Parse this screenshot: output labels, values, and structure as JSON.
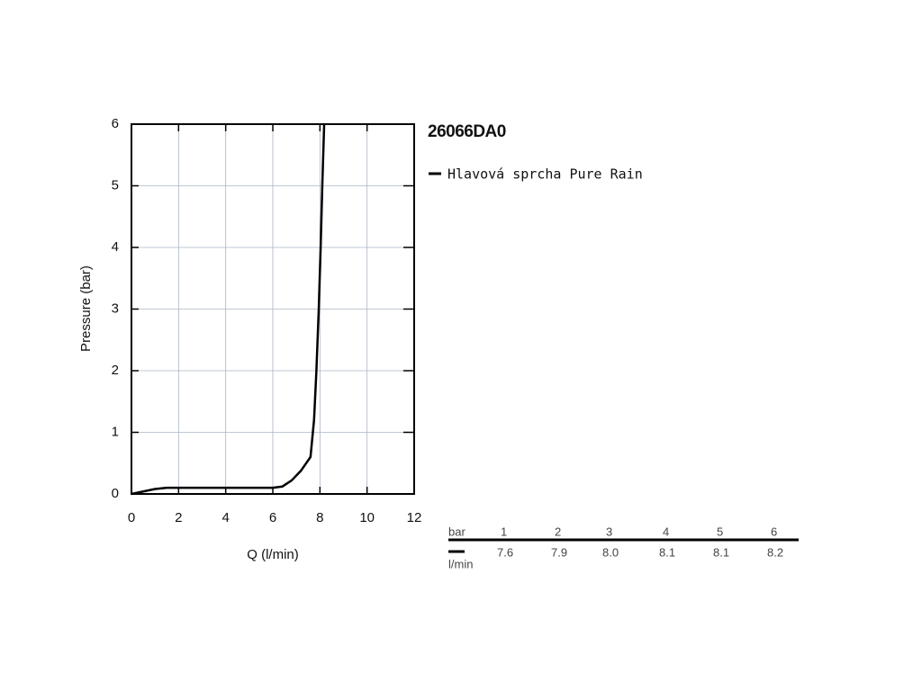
{
  "chart_data": {
    "type": "line",
    "title": "26066DA0",
    "x_label": "Q (l/min)",
    "y_label": "Pressure (bar)",
    "series": [
      {
        "name": "Hlavová sprcha Pure Rain",
        "color": "#000000",
        "x": [
          0,
          0.5,
          1,
          1.5,
          2,
          4,
          6,
          6.4,
          6.8,
          7.2,
          7.6,
          7.75,
          7.85,
          7.95,
          8.03,
          8.1,
          8.18
        ],
        "values": [
          0,
          0.04,
          0.08,
          0.1,
          0.1,
          0.1,
          0.1,
          0.12,
          0.22,
          0.38,
          0.6,
          1.2,
          2,
          3,
          4,
          5,
          6
        ]
      }
    ],
    "xlim": [
      0,
      12
    ],
    "ylim": [
      0,
      6
    ],
    "xticks": [
      0,
      2,
      4,
      6,
      8,
      10,
      12
    ],
    "yticks": [
      0,
      1,
      2,
      3,
      4,
      5,
      6
    ],
    "grid": true
  },
  "table": {
    "header_label": "bar",
    "unit_label": "l/min",
    "columns": [
      1,
      2,
      3,
      4,
      5,
      6
    ],
    "row": [
      "7.6",
      "7.9",
      "8.0",
      "8.1",
      "8.1",
      "8.2"
    ]
  }
}
